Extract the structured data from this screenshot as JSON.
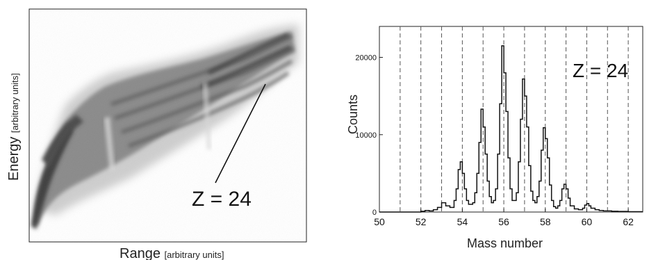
{
  "chart_data": [
    {
      "type": "scatter",
      "xlabel": "Range",
      "xlabel_unit": "[arbitrary units]",
      "ylabel": "Energy",
      "ylabel_unit": "[arbitrary units]",
      "annotation": "Z = 24",
      "ticks": "none"
    },
    {
      "type": "line",
      "style": "histogram-step",
      "xlabel": "Mass number",
      "ylabel": "Counts",
      "xlim": [
        50,
        62.7
      ],
      "ylim": [
        0,
        24000
      ],
      "xticks": [
        50,
        52,
        54,
        56,
        58,
        60,
        62
      ],
      "yticks": [
        0,
        10000,
        20000
      ],
      "dashed_lines_at": [
        51,
        52,
        53,
        54,
        55,
        56,
        57,
        58,
        59,
        60,
        61,
        62
      ],
      "annotation": "Z = 24",
      "x": [
        50.0,
        50.5,
        51.0,
        51.5,
        52.0,
        52.2,
        52.4,
        52.6,
        52.8,
        53.0,
        53.2,
        53.4,
        53.6,
        53.7,
        53.8,
        53.9,
        54.0,
        54.1,
        54.2,
        54.3,
        54.4,
        54.5,
        54.6,
        54.7,
        54.8,
        54.9,
        55.0,
        55.1,
        55.2,
        55.3,
        55.4,
        55.5,
        55.6,
        55.7,
        55.8,
        55.9,
        56.0,
        56.1,
        56.2,
        56.3,
        56.4,
        56.5,
        56.6,
        56.7,
        56.8,
        56.9,
        57.0,
        57.1,
        57.2,
        57.3,
        57.4,
        57.5,
        57.6,
        57.7,
        57.8,
        57.9,
        58.0,
        58.1,
        58.2,
        58.3,
        58.4,
        58.5,
        58.6,
        58.7,
        58.8,
        58.9,
        59.0,
        59.1,
        59.2,
        59.4,
        59.6,
        59.8,
        59.9,
        60.0,
        60.1,
        60.2,
        60.4,
        60.6,
        60.8,
        61.0,
        61.2,
        61.5,
        62.0,
        62.7
      ],
      "y": [
        0,
        0,
        0,
        0,
        100,
        200,
        150,
        300,
        600,
        1200,
        800,
        600,
        1500,
        3000,
        5500,
        6500,
        5000,
        3000,
        1500,
        1000,
        1000,
        1200,
        2500,
        5000,
        9000,
        13300,
        11000,
        7500,
        4000,
        2000,
        1200,
        1500,
        3000,
        7500,
        14000,
        21500,
        18000,
        13000,
        7000,
        3000,
        1500,
        1500,
        2500,
        6500,
        12000,
        17200,
        15000,
        11000,
        6000,
        2700,
        1500,
        1200,
        2000,
        4000,
        8000,
        10900,
        9500,
        7000,
        3500,
        1500,
        700,
        500,
        800,
        1500,
        3000,
        3600,
        3000,
        1800,
        800,
        400,
        300,
        500,
        900,
        1100,
        800,
        500,
        300,
        200,
        150,
        150,
        100,
        80,
        50,
        50
      ]
    }
  ]
}
